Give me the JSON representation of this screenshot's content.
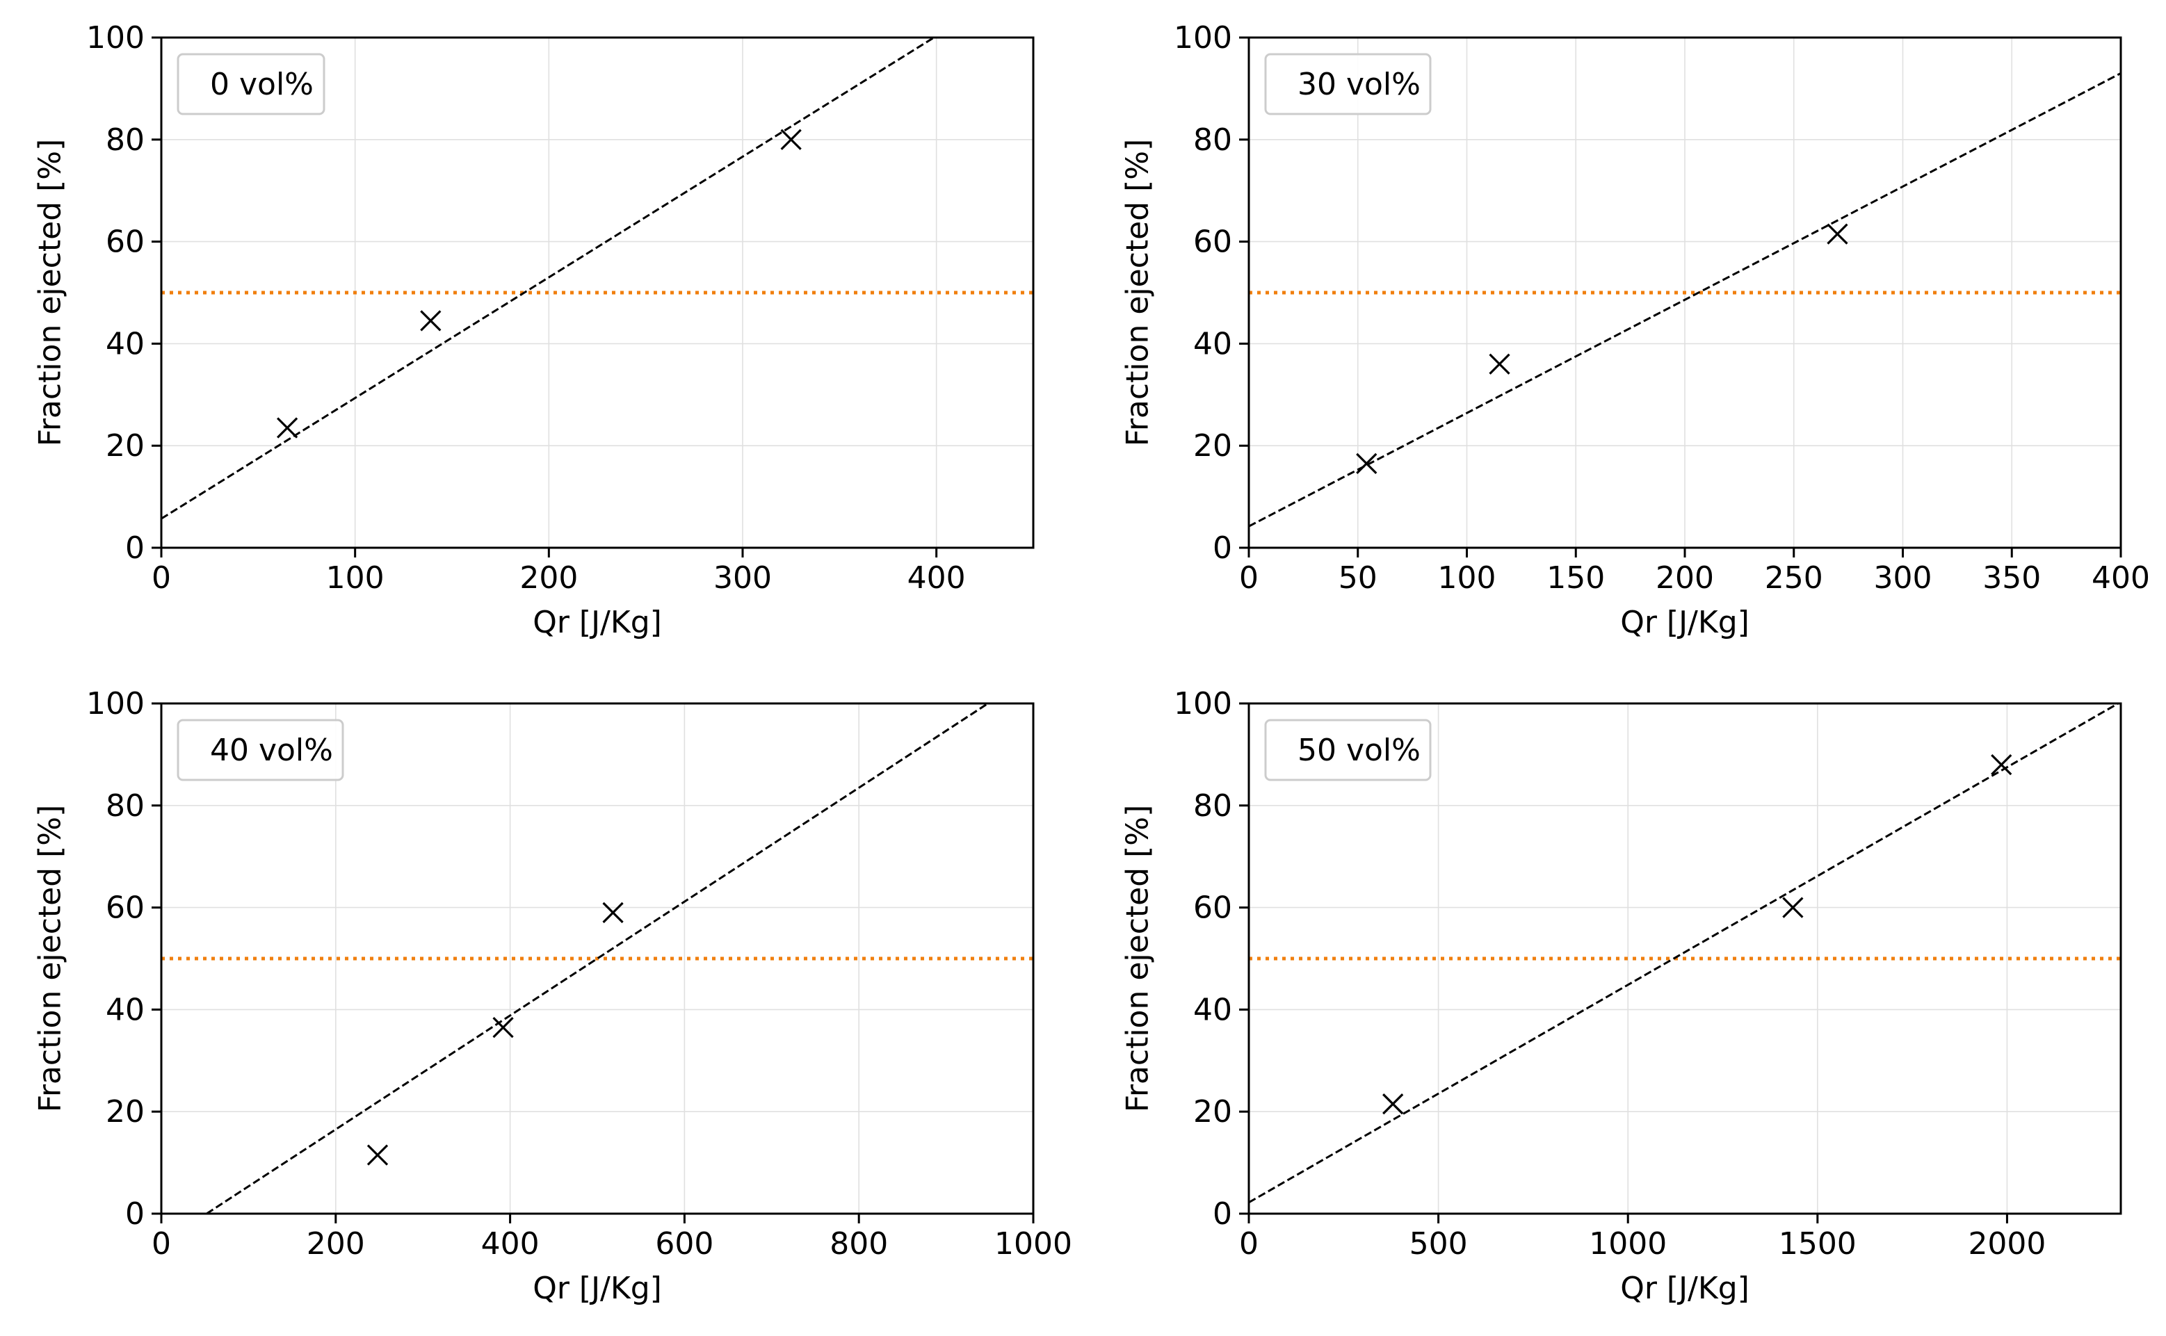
{
  "chart_data": [
    {
      "type": "scatter",
      "title": "",
      "legend": "0 vol%",
      "legend_position": "top-left",
      "xlabel": "Qr [J/Kg]",
      "ylabel": "Fraction ejected [%]",
      "xlim": [
        0,
        450
      ],
      "ylim": [
        0,
        100
      ],
      "xticks": [
        0,
        100,
        200,
        300,
        400
      ],
      "yticks": [
        0,
        20,
        40,
        60,
        80,
        100
      ],
      "grid": true,
      "points": [
        {
          "x": 65,
          "y": 23.5
        },
        {
          "x": 139,
          "y": 44.5
        },
        {
          "x": 325,
          "y": 80
        }
      ],
      "fit_line": {
        "x": [
          0,
          400
        ],
        "y": [
          5.7,
          100.3
        ]
      },
      "threshold": 50
    },
    {
      "type": "scatter",
      "title": "",
      "legend": "30 vol%",
      "legend_position": "top-left",
      "xlabel": "Qr [J/Kg]",
      "ylabel": "Fraction ejected [%]",
      "xlim": [
        0,
        400
      ],
      "ylim": [
        0,
        100
      ],
      "xticks": [
        0,
        50,
        100,
        150,
        200,
        250,
        300,
        350,
        400
      ],
      "yticks": [
        0,
        20,
        40,
        60,
        80,
        100
      ],
      "grid": true,
      "points": [
        {
          "x": 54,
          "y": 16.5
        },
        {
          "x": 115,
          "y": 36
        },
        {
          "x": 270,
          "y": 61.5
        }
      ],
      "fit_line": {
        "x": [
          0,
          400
        ],
        "y": [
          4.2,
          93
        ]
      },
      "threshold": 50
    },
    {
      "type": "scatter",
      "title": "",
      "legend": "40 vol%",
      "legend_position": "top-left",
      "xlabel": "Qr [J/Kg]",
      "ylabel": "Fraction ejected [%]",
      "xlim": [
        0,
        1000
      ],
      "ylim": [
        0,
        100
      ],
      "xticks": [
        0,
        200,
        400,
        600,
        800,
        1000
      ],
      "yticks": [
        0,
        20,
        40,
        60,
        80,
        100
      ],
      "grid": true,
      "points": [
        {
          "x": 248,
          "y": 11.5
        },
        {
          "x": 392,
          "y": 36.5
        },
        {
          "x": 518,
          "y": 59
        }
      ],
      "fit_line": {
        "x": [
          52,
          948
        ],
        "y": [
          0,
          100
        ]
      },
      "threshold": 50
    },
    {
      "type": "scatter",
      "title": "",
      "legend": "50 vol%",
      "legend_position": "top-left",
      "xlabel": "Qr [J/Kg]",
      "ylabel": "Fraction ejected [%]",
      "xlim": [
        0,
        2300
      ],
      "ylim": [
        0,
        100
      ],
      "xticks": [
        0,
        500,
        1000,
        1500,
        2000
      ],
      "yticks": [
        0,
        20,
        40,
        60,
        80,
        100
      ],
      "grid": true,
      "points": [
        {
          "x": 380,
          "y": 21.5
        },
        {
          "x": 1435,
          "y": 60
        },
        {
          "x": 1985,
          "y": 88
        }
      ],
      "fit_line": {
        "x": [
          0,
          2300
        ],
        "y": [
          2.2,
          100.3
        ]
      },
      "threshold": 50
    }
  ],
  "colors": {
    "axis": "#000000",
    "grid": "#e0e0e0",
    "fit_line": "#000000",
    "threshold": "#f07f0e",
    "marker": "#000000",
    "legend_border": "#cccccc"
  }
}
